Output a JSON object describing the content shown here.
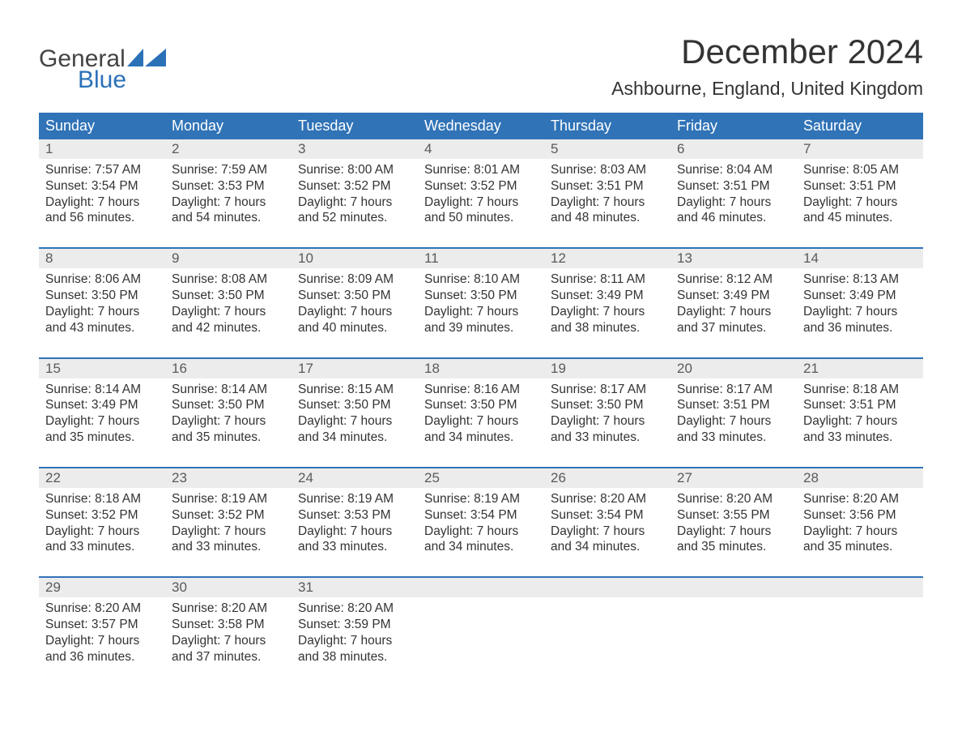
{
  "brand": {
    "word1": "General",
    "word2": "Blue",
    "flag_color": "#2b71b8",
    "word2_color": "#2b71b8",
    "word1_color": "#444444"
  },
  "title": "December 2024",
  "location": "Ashbourne, England, United Kingdom",
  "colors": {
    "header_bg": "#3073b7",
    "header_text": "#ffffff",
    "daynum_bg": "#ececec",
    "body_text": "#333333",
    "week_border": "#3073b7"
  },
  "day_headers": [
    "Sunday",
    "Monday",
    "Tuesday",
    "Wednesday",
    "Thursday",
    "Friday",
    "Saturday"
  ],
  "weeks": [
    [
      {
        "n": "1",
        "sunrise": "7:57 AM",
        "sunset": "3:54 PM",
        "dl1": "Daylight: 7 hours",
        "dl2": "and 56 minutes."
      },
      {
        "n": "2",
        "sunrise": "7:59 AM",
        "sunset": "3:53 PM",
        "dl1": "Daylight: 7 hours",
        "dl2": "and 54 minutes."
      },
      {
        "n": "3",
        "sunrise": "8:00 AM",
        "sunset": "3:52 PM",
        "dl1": "Daylight: 7 hours",
        "dl2": "and 52 minutes."
      },
      {
        "n": "4",
        "sunrise": "8:01 AM",
        "sunset": "3:52 PM",
        "dl1": "Daylight: 7 hours",
        "dl2": "and 50 minutes."
      },
      {
        "n": "5",
        "sunrise": "8:03 AM",
        "sunset": "3:51 PM",
        "dl1": "Daylight: 7 hours",
        "dl2": "and 48 minutes."
      },
      {
        "n": "6",
        "sunrise": "8:04 AM",
        "sunset": "3:51 PM",
        "dl1": "Daylight: 7 hours",
        "dl2": "and 46 minutes."
      },
      {
        "n": "7",
        "sunrise": "8:05 AM",
        "sunset": "3:51 PM",
        "dl1": "Daylight: 7 hours",
        "dl2": "and 45 minutes."
      }
    ],
    [
      {
        "n": "8",
        "sunrise": "8:06 AM",
        "sunset": "3:50 PM",
        "dl1": "Daylight: 7 hours",
        "dl2": "and 43 minutes."
      },
      {
        "n": "9",
        "sunrise": "8:08 AM",
        "sunset": "3:50 PM",
        "dl1": "Daylight: 7 hours",
        "dl2": "and 42 minutes."
      },
      {
        "n": "10",
        "sunrise": "8:09 AM",
        "sunset": "3:50 PM",
        "dl1": "Daylight: 7 hours",
        "dl2": "and 40 minutes."
      },
      {
        "n": "11",
        "sunrise": "8:10 AM",
        "sunset": "3:50 PM",
        "dl1": "Daylight: 7 hours",
        "dl2": "and 39 minutes."
      },
      {
        "n": "12",
        "sunrise": "8:11 AM",
        "sunset": "3:49 PM",
        "dl1": "Daylight: 7 hours",
        "dl2": "and 38 minutes."
      },
      {
        "n": "13",
        "sunrise": "8:12 AM",
        "sunset": "3:49 PM",
        "dl1": "Daylight: 7 hours",
        "dl2": "and 37 minutes."
      },
      {
        "n": "14",
        "sunrise": "8:13 AM",
        "sunset": "3:49 PM",
        "dl1": "Daylight: 7 hours",
        "dl2": "and 36 minutes."
      }
    ],
    [
      {
        "n": "15",
        "sunrise": "8:14 AM",
        "sunset": "3:49 PM",
        "dl1": "Daylight: 7 hours",
        "dl2": "and 35 minutes."
      },
      {
        "n": "16",
        "sunrise": "8:14 AM",
        "sunset": "3:50 PM",
        "dl1": "Daylight: 7 hours",
        "dl2": "and 35 minutes."
      },
      {
        "n": "17",
        "sunrise": "8:15 AM",
        "sunset": "3:50 PM",
        "dl1": "Daylight: 7 hours",
        "dl2": "and 34 minutes."
      },
      {
        "n": "18",
        "sunrise": "8:16 AM",
        "sunset": "3:50 PM",
        "dl1": "Daylight: 7 hours",
        "dl2": "and 34 minutes."
      },
      {
        "n": "19",
        "sunrise": "8:17 AM",
        "sunset": "3:50 PM",
        "dl1": "Daylight: 7 hours",
        "dl2": "and 33 minutes."
      },
      {
        "n": "20",
        "sunrise": "8:17 AM",
        "sunset": "3:51 PM",
        "dl1": "Daylight: 7 hours",
        "dl2": "and 33 minutes."
      },
      {
        "n": "21",
        "sunrise": "8:18 AM",
        "sunset": "3:51 PM",
        "dl1": "Daylight: 7 hours",
        "dl2": "and 33 minutes."
      }
    ],
    [
      {
        "n": "22",
        "sunrise": "8:18 AM",
        "sunset": "3:52 PM",
        "dl1": "Daylight: 7 hours",
        "dl2": "and 33 minutes."
      },
      {
        "n": "23",
        "sunrise": "8:19 AM",
        "sunset": "3:52 PM",
        "dl1": "Daylight: 7 hours",
        "dl2": "and 33 minutes."
      },
      {
        "n": "24",
        "sunrise": "8:19 AM",
        "sunset": "3:53 PM",
        "dl1": "Daylight: 7 hours",
        "dl2": "and 33 minutes."
      },
      {
        "n": "25",
        "sunrise": "8:19 AM",
        "sunset": "3:54 PM",
        "dl1": "Daylight: 7 hours",
        "dl2": "and 34 minutes."
      },
      {
        "n": "26",
        "sunrise": "8:20 AM",
        "sunset": "3:54 PM",
        "dl1": "Daylight: 7 hours",
        "dl2": "and 34 minutes."
      },
      {
        "n": "27",
        "sunrise": "8:20 AM",
        "sunset": "3:55 PM",
        "dl1": "Daylight: 7 hours",
        "dl2": "and 35 minutes."
      },
      {
        "n": "28",
        "sunrise": "8:20 AM",
        "sunset": "3:56 PM",
        "dl1": "Daylight: 7 hours",
        "dl2": "and 35 minutes."
      }
    ],
    [
      {
        "n": "29",
        "sunrise": "8:20 AM",
        "sunset": "3:57 PM",
        "dl1": "Daylight: 7 hours",
        "dl2": "and 36 minutes."
      },
      {
        "n": "30",
        "sunrise": "8:20 AM",
        "sunset": "3:58 PM",
        "dl1": "Daylight: 7 hours",
        "dl2": "and 37 minutes."
      },
      {
        "n": "31",
        "sunrise": "8:20 AM",
        "sunset": "3:59 PM",
        "dl1": "Daylight: 7 hours",
        "dl2": "and 38 minutes."
      },
      {
        "empty": true
      },
      {
        "empty": true
      },
      {
        "empty": true
      },
      {
        "empty": true
      }
    ]
  ],
  "labels": {
    "sunrise_prefix": "Sunrise: ",
    "sunset_prefix": "Sunset: "
  }
}
